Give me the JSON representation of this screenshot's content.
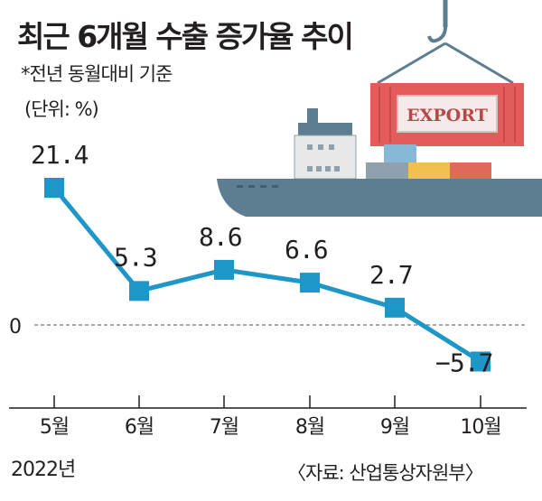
{
  "header": {
    "title": "최근 6개월 수출 증가율 추이",
    "subtitle": "*전년 동월대비 기준",
    "unit": "(단위: %)"
  },
  "illustration": {
    "container_label": "EXPORT"
  },
  "colors": {
    "line": "#1e96c8",
    "marker": "#1e96c8",
    "text": "#231f20",
    "ship_hull": "#5d7d91",
    "container": "#e35b5b"
  },
  "chart_data": {
    "type": "line",
    "title": "최근 6개월 수출 증가율 추이",
    "categories": [
      "5월",
      "6월",
      "7월",
      "8월",
      "9월",
      "10월"
    ],
    "values": [
      21.4,
      5.3,
      8.6,
      6.6,
      2.7,
      -5.7
    ],
    "value_labels": [
      "21.4",
      "5.3",
      "8.6",
      "6.6",
      "2.7",
      "−5.7"
    ],
    "year_label": "2022년",
    "zero_label": "0",
    "xlabel": "",
    "ylabel": "",
    "ylim": [
      -8,
      24
    ],
    "grid": false
  },
  "footer": {
    "source": "〈자료: 산업통상자원부〉"
  }
}
